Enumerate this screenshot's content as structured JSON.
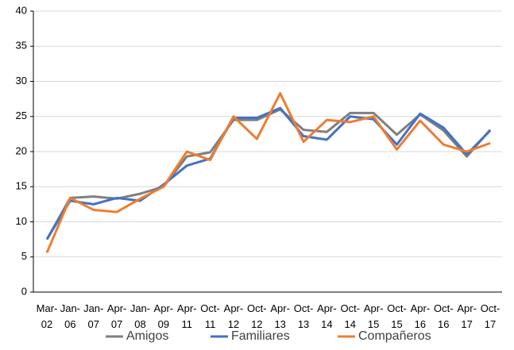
{
  "chart_data": {
    "type": "line",
    "categories": [
      "Mar-02",
      "Jan-06",
      "Jan-07",
      "Apr-07",
      "Jan-08",
      "Apr-09",
      "Apr-11",
      "Oct-11",
      "Apr-12",
      "Oct-12",
      "Apr-13",
      "Oct-13",
      "Apr-14",
      "Oct-14",
      "Apr-15",
      "Oct-15",
      "Apr-16",
      "Oct-16",
      "Apr-17",
      "Oct-17"
    ],
    "series": [
      {
        "name": "Amigos",
        "color": "#7f7f7f",
        "values": [
          7.5,
          13.4,
          13.6,
          13.3,
          14,
          15,
          19.3,
          19.9,
          24.5,
          24.5,
          26,
          23.1,
          22.8,
          25.5,
          25.5,
          22.4,
          25.3,
          23,
          19.3,
          23.1
        ]
      },
      {
        "name": "Familiares",
        "color": "#4472c4",
        "values": [
          7.5,
          13,
          12.5,
          13.4,
          13,
          15.3,
          18,
          19,
          24.8,
          24.8,
          26.2,
          22.2,
          21.7,
          25,
          24.6,
          21,
          25.4,
          23.4,
          19.6,
          23
        ]
      },
      {
        "name": "Compañeros",
        "color": "#ed7d31",
        "values": [
          5.6,
          13.4,
          11.7,
          11.4,
          13.3,
          15,
          20,
          18.8,
          25,
          21.8,
          28.3,
          21.4,
          24.5,
          24.2,
          25,
          20.3,
          24.4,
          21,
          20,
          21.2
        ]
      }
    ],
    "ylim": [
      0,
      40
    ],
    "yticks": [
      0,
      5,
      10,
      15,
      20,
      25,
      30,
      35,
      40
    ],
    "grid": true,
    "legend": "bottom"
  }
}
